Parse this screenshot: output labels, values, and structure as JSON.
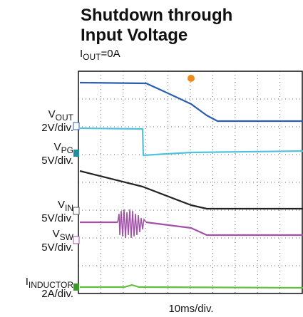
{
  "title_lines": [
    "Shutdown through",
    "Input Voltage"
  ],
  "condition": {
    "symbol": "I",
    "sub": "OUT",
    "rest": "=0A"
  },
  "channels": [
    {
      "symbol": "V",
      "sub": "OUT",
      "scale": "2V/div."
    },
    {
      "symbol": "V",
      "sub": "PG",
      "scale": "5V/div."
    },
    {
      "symbol": "V",
      "sub": "IN",
      "scale": "5V/div."
    },
    {
      "symbol": "V",
      "sub": "SW",
      "scale": "5V/div."
    },
    {
      "symbol": "I",
      "sub": "INDUCTOR",
      "scale": "2A/div."
    }
  ],
  "x_label": "10ms/div."
}
